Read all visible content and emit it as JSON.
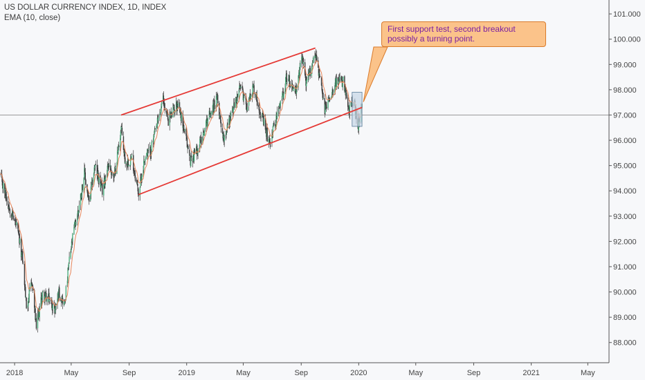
{
  "legend": {
    "title": "US DOLLAR CURRENCY INDEX, 1D, INDEX",
    "indicator": "EMA (10, close)"
  },
  "callout": {
    "line1": "First support test, second breakout",
    "line2": "possibly a turning point."
  },
  "colors": {
    "background": "#f7f8fa",
    "candle_up": "#3a3a3a",
    "candle_down": "#3a3a3a",
    "ema": "#e8865a",
    "trendline": "#e53935",
    "horizontal_line": "#7a7a7a",
    "callout_bg": "#fbc38a",
    "callout_border": "#d97a2a",
    "callout_text": "#7b1fa2",
    "highlight_box": "#c5d6e6"
  },
  "chart_data": {
    "type": "candlestick",
    "title": "US DOLLAR CURRENCY INDEX, 1D, INDEX",
    "indicator": "EMA (10, close)",
    "xlabel": "",
    "ylabel": "",
    "x_range": [
      "2017-12-01",
      "2021-06-15"
    ],
    "ylim": [
      87.2,
      101.55
    ],
    "y_ticks": [
      "101.000",
      "100.000",
      "99.000",
      "98.000",
      "97.000",
      "96.000",
      "95.000",
      "94.000",
      "93.000",
      "92.000",
      "91.000",
      "90.000",
      "89.000",
      "88.000"
    ],
    "x_ticks": [
      {
        "date": "2018-01-01",
        "label": "2018"
      },
      {
        "date": "2018-05-01",
        "label": "May"
      },
      {
        "date": "2018-09-01",
        "label": "Sep"
      },
      {
        "date": "2019-01-01",
        "label": "2019"
      },
      {
        "date": "2019-05-01",
        "label": "May"
      },
      {
        "date": "2019-09-01",
        "label": "Sep"
      },
      {
        "date": "2020-01-01",
        "label": "2020"
      },
      {
        "date": "2020-05-01",
        "label": "May"
      },
      {
        "date": "2020-09-01",
        "label": "Sep"
      },
      {
        "date": "2021-01-01",
        "label": "2021"
      },
      {
        "date": "2021-05-01",
        "label": "May"
      }
    ],
    "grid": false,
    "price_path": [
      [
        "2017-12-01",
        94.6
      ],
      [
        "2017-12-20",
        93.4
      ],
      [
        "2018-01-05",
        92.6
      ],
      [
        "2018-01-18",
        91.3
      ],
      [
        "2018-01-26",
        89.4
      ],
      [
        "2018-02-07",
        90.4
      ],
      [
        "2018-02-16",
        88.6
      ],
      [
        "2018-03-01",
        89.9
      ],
      [
        "2018-03-16",
        89.7
      ],
      [
        "2018-03-27",
        89.3
      ],
      [
        "2018-04-05",
        90.0
      ],
      [
        "2018-04-17",
        89.5
      ],
      [
        "2018-04-26",
        91.1
      ],
      [
        "2018-05-08",
        92.6
      ],
      [
        "2018-05-16",
        93.2
      ],
      [
        "2018-05-29",
        94.7
      ],
      [
        "2018-06-08",
        93.5
      ],
      [
        "2018-06-20",
        95.0
      ],
      [
        "2018-07-06",
        94.0
      ],
      [
        "2018-07-19",
        95.1
      ],
      [
        "2018-07-31",
        94.5
      ],
      [
        "2018-08-15",
        96.5
      ],
      [
        "2018-08-24",
        95.1
      ],
      [
        "2018-09-07",
        95.3
      ],
      [
        "2018-09-21",
        93.9
      ],
      [
        "2018-10-05",
        95.4
      ],
      [
        "2018-10-17",
        95.6
      ],
      [
        "2018-11-12",
        97.6
      ],
      [
        "2018-11-23",
        96.8
      ],
      [
        "2018-12-14",
        97.5
      ],
      [
        "2019-01-09",
        95.2
      ],
      [
        "2019-01-28",
        95.8
      ],
      [
        "2019-02-15",
        96.9
      ],
      [
        "2019-03-07",
        97.6
      ],
      [
        "2019-03-20",
        96.1
      ],
      [
        "2019-04-25",
        98.1
      ],
      [
        "2019-05-09",
        97.4
      ],
      [
        "2019-05-23",
        98.1
      ],
      [
        "2019-06-25",
        95.9
      ],
      [
        "2019-07-17",
        97.3
      ],
      [
        "2019-08-01",
        98.5
      ],
      [
        "2019-08-22",
        97.9
      ],
      [
        "2019-09-03",
        99.4
      ],
      [
        "2019-09-12",
        98.2
      ],
      [
        "2019-10-01",
        99.5
      ],
      [
        "2019-10-21",
        97.2
      ],
      [
        "2019-11-12",
        98.3
      ],
      [
        "2019-11-29",
        98.3
      ],
      [
        "2019-12-11",
        97.1
      ],
      [
        "2019-12-20",
        97.6
      ],
      [
        "2019-12-31",
        96.6
      ],
      [
        "2020-01-08",
        97.3
      ]
    ],
    "annotations": {
      "channel_upper": {
        "from": [
          "2018-08-15",
          97.0
        ],
        "to": [
          "2019-10-01",
          99.65
        ]
      },
      "channel_lower": {
        "from": [
          "2018-09-21",
          93.85
        ],
        "to": [
          "2020-01-08",
          97.3
        ]
      },
      "horizontal_level": 97.0,
      "highlight_box": {
        "x": [
          "2019-12-18",
          "2020-01-08"
        ],
        "y": [
          96.55,
          97.9
        ]
      },
      "callout_text": "First support test, second breakout possibly a turning point."
    }
  }
}
